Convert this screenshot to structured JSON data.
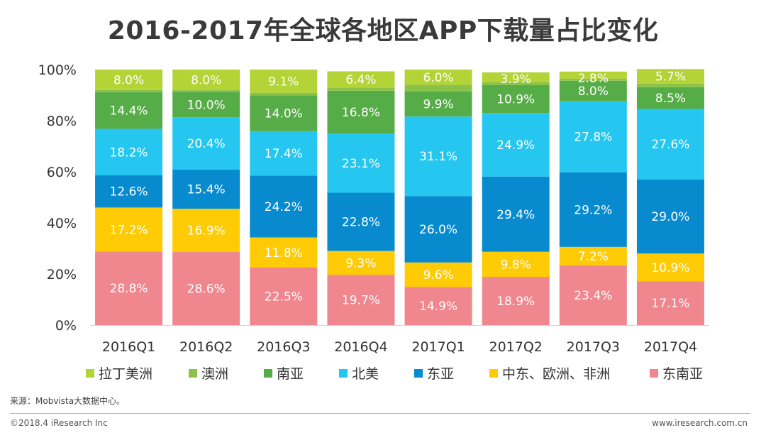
{
  "chart_data": {
    "type": "bar",
    "stacked": true,
    "title": "2016-2017年全球各地区APP下载量占比变化",
    "categories": [
      "2016Q1",
      "2016Q2",
      "2016Q3",
      "2016Q4",
      "2017Q1",
      "2017Q2",
      "2017Q3",
      "2017Q4"
    ],
    "yticks": [
      "0%",
      "20%",
      "40%",
      "60%",
      "80%",
      "100%"
    ],
    "ylim": [
      0,
      100
    ],
    "xlabel": "",
    "ylabel": "",
    "legend_position": "bottom",
    "series": [
      {
        "name": "东南亚",
        "color": "#F0868E",
        "values": [
          28.8,
          28.6,
          22.5,
          19.7,
          14.9,
          18.9,
          23.4,
          17.1
        ],
        "labels": [
          "28.8%",
          "28.6%",
          "22.5%",
          "19.7%",
          "14.9%",
          "18.9%",
          "23.4%",
          "17.1%"
        ]
      },
      {
        "name": "中东、欧洲、非洲",
        "color": "#FFCB05",
        "values": [
          17.2,
          16.9,
          11.8,
          9.3,
          9.6,
          9.8,
          7.2,
          10.9
        ],
        "labels": [
          "17.2%",
          "16.9%",
          "11.8%",
          "9.3%",
          "9.6%",
          "9.8%",
          "7.2%",
          "10.9%"
        ]
      },
      {
        "name": "东亚",
        "color": "#078BCE",
        "values": [
          12.6,
          15.4,
          24.2,
          22.8,
          26.0,
          29.4,
          29.2,
          29.0
        ],
        "labels": [
          "12.6%",
          "15.4%",
          "24.2%",
          "22.8%",
          "26.0%",
          "29.4%",
          "29.2%",
          "29.0%"
        ]
      },
      {
        "name": "北美",
        "color": "#25C7F0",
        "values": [
          18.2,
          20.4,
          17.4,
          23.1,
          31.1,
          24.9,
          27.8,
          27.6
        ],
        "labels": [
          "18.2%",
          "20.4%",
          "17.4%",
          "23.1%",
          "31.1%",
          "24.9%",
          "27.8%",
          "27.6%"
        ]
      },
      {
        "name": "南亚",
        "color": "#56AC47",
        "values": [
          14.4,
          10.0,
          14.0,
          16.8,
          9.9,
          10.9,
          8.0,
          8.5
        ],
        "labels": [
          "14.4%",
          "10.0%",
          "14.0%",
          "16.8%",
          "9.9%",
          "10.9%",
          "8.0%",
          "8.5%"
        ]
      },
      {
        "name": "澳洲",
        "color": "#8BC34A",
        "values": [
          0.8,
          0.7,
          1.0,
          1.2,
          2.5,
          1.1,
          0.8,
          1.4
        ],
        "labels": [
          "",
          "",
          "",
          "",
          "",
          "",
          "",
          ""
        ]
      },
      {
        "name": "拉丁美洲",
        "color": "#B4D337",
        "values": [
          8.0,
          8.0,
          9.1,
          6.4,
          6.0,
          3.9,
          2.8,
          5.7
        ],
        "labels": [
          "8.0%",
          "8.0%",
          "9.1%",
          "6.4%",
          "6.0%",
          "3.9%",
          "2.8%",
          "5.7%"
        ]
      }
    ],
    "legend_order": [
      "拉丁美洲",
      "澳洲",
      "南亚",
      "北美",
      "东亚",
      "中东、欧洲、非洲",
      "东南亚"
    ]
  },
  "footer": {
    "source": "来源：Mobvista大数据中心。",
    "copyright": "©2018.4 iResearch Inc",
    "website": "www.iresearch.com.cn"
  }
}
